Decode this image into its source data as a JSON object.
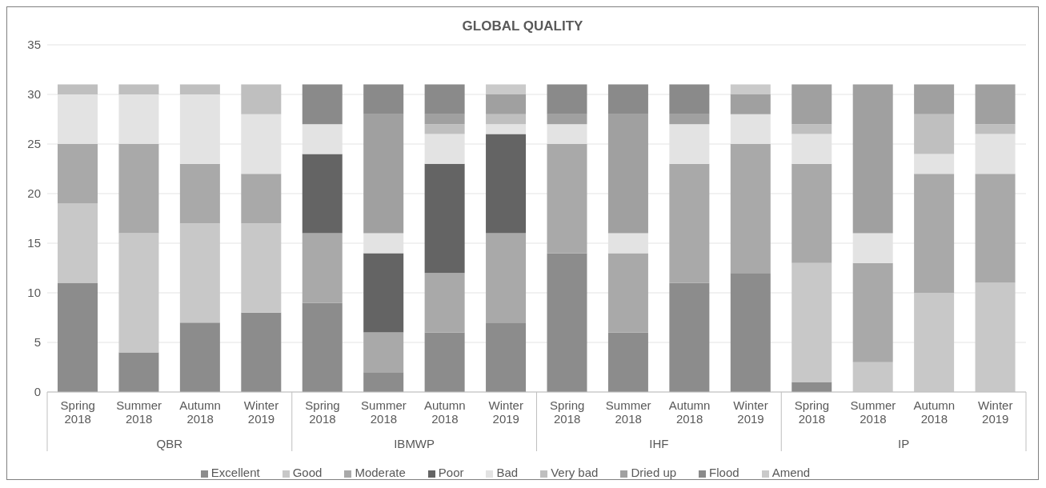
{
  "chart_data": {
    "type": "bar",
    "title": "GLOBAL QUALITY",
    "stacked": true,
    "grid": "y",
    "legend": "bottom",
    "categories": [
      "Spring 2018",
      "Summer 2018",
      "Autumn 2018",
      "Winter 2019",
      "Spring 2018",
      "Summer 2018",
      "Autumn 2018",
      "Winter 2019",
      "Spring 2018",
      "Summer 2018",
      "Autumn 2018",
      "Winter 2019",
      "Spring 2018",
      "Summer 2018",
      "Autumn 2018",
      "Winter 2019"
    ],
    "annotations": [
      "QBR",
      "IBMWP",
      "IHF",
      "IP"
    ],
    "ylim": [
      0,
      35
    ],
    "yticks": [
      0,
      5,
      10,
      15,
      20,
      25,
      30,
      35
    ],
    "series": [
      {
        "name": "Excellent",
        "color": "#8c8c8c",
        "values": [
          11,
          4,
          7,
          8,
          9,
          2,
          6,
          7,
          14,
          6,
          11,
          12,
          1,
          0,
          0,
          0
        ]
      },
      {
        "name": "Good",
        "color": "#c8c8c8",
        "values": [
          8,
          12,
          10,
          9,
          0,
          0,
          0,
          0,
          0,
          0,
          0,
          0,
          12,
          3,
          10,
          11
        ]
      },
      {
        "name": "Moderate",
        "color": "#a9a9a9",
        "values": [
          6,
          9,
          6,
          5,
          7,
          4,
          6,
          9,
          11,
          8,
          12,
          13,
          10,
          10,
          12,
          11
        ]
      },
      {
        "name": "Poor",
        "color": "#646464",
        "values": [
          0,
          0,
          0,
          0,
          8,
          8,
          11,
          10,
          0,
          0,
          0,
          0,
          0,
          0,
          0,
          0
        ]
      },
      {
        "name": "Bad",
        "color": "#e3e3e3",
        "values": [
          5,
          5,
          7,
          6,
          3,
          2,
          3,
          1,
          2,
          2,
          4,
          3,
          3,
          3,
          2,
          4
        ]
      },
      {
        "name": "Very bad",
        "color": "#bfbfbf",
        "values": [
          1,
          1,
          1,
          3,
          0,
          0,
          1,
          1,
          0,
          0,
          0,
          0,
          1,
          0,
          4,
          1
        ]
      },
      {
        "name": "Dried up",
        "color": "#a0a0a0",
        "values": [
          0,
          0,
          0,
          0,
          0,
          12,
          1,
          2,
          1,
          12,
          1,
          2,
          4,
          15,
          3,
          4
        ]
      },
      {
        "name": "Flood",
        "color": "#8a8a8a",
        "values": [
          0,
          0,
          0,
          0,
          4,
          3,
          3,
          0,
          3,
          3,
          3,
          0,
          0,
          0,
          0,
          0
        ]
      },
      {
        "name": "Amend",
        "color": "#cacaca",
        "values": [
          0,
          0,
          0,
          0,
          0,
          0,
          0,
          1,
          0,
          0,
          0,
          1,
          0,
          0,
          0,
          0
        ]
      }
    ]
  }
}
